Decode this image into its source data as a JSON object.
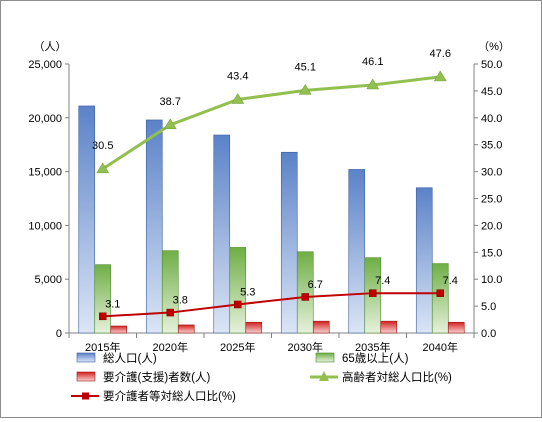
{
  "chart_data": {
    "type": "bar",
    "categories": [
      "2015年",
      "2020年",
      "2025年",
      "2030年",
      "2035年",
      "2040年"
    ],
    "left_axis": {
      "unit": "（人）",
      "range": [
        0,
        25000
      ],
      "ticks": [
        "0",
        "5,000",
        "10,000",
        "15,000",
        "20,000",
        "25,000"
      ],
      "tick_values": [
        0,
        5000,
        10000,
        15000,
        20000,
        25000
      ]
    },
    "right_axis": {
      "unit": "（%）",
      "range": [
        0,
        50
      ],
      "ticks": [
        "0.0",
        "5.0",
        "10.0",
        "15.0",
        "20.0",
        "25.0",
        "30.0",
        "35.0",
        "40.0",
        "45.0",
        "50.0"
      ],
      "tick_values": [
        0,
        5,
        10,
        15,
        20,
        25,
        30,
        35,
        40,
        45,
        50
      ]
    },
    "series": [
      {
        "name": "総人口(人)",
        "kind": "bar",
        "axis": "left",
        "color": "#4472c4",
        "values": [
          21100,
          19800,
          18400,
          16800,
          15200,
          13500
        ]
      },
      {
        "name": "65歳以上(人)",
        "kind": "bar",
        "axis": "left",
        "color": "#70ad47",
        "values": [
          6350,
          7650,
          7950,
          7550,
          7000,
          6450
        ]
      },
      {
        "name": "要介護(支援)者数(人)",
        "kind": "bar",
        "axis": "left",
        "color": "#e03030",
        "values": [
          650,
          750,
          1000,
          1100,
          1100,
          1000
        ]
      },
      {
        "name": "高齢者対総人口比(%)",
        "kind": "line",
        "axis": "right",
        "color": "#92c050",
        "values": [
          30.5,
          38.7,
          43.4,
          45.1,
          46.1,
          47.6
        ],
        "labels": [
          "30.5",
          "38.7",
          "43.4",
          "45.1",
          "46.1",
          "47.6"
        ]
      },
      {
        "name": "要介護者等対総人口比(%)",
        "kind": "line",
        "axis": "right",
        "color": "#c00000",
        "values": [
          3.1,
          3.8,
          5.3,
          6.7,
          7.4,
          7.4
        ],
        "labels": [
          "3.1",
          "3.8",
          "5.3",
          "6.7",
          "7.4",
          "7.4"
        ]
      }
    ],
    "legend_position": "bottom",
    "grid": false
  }
}
